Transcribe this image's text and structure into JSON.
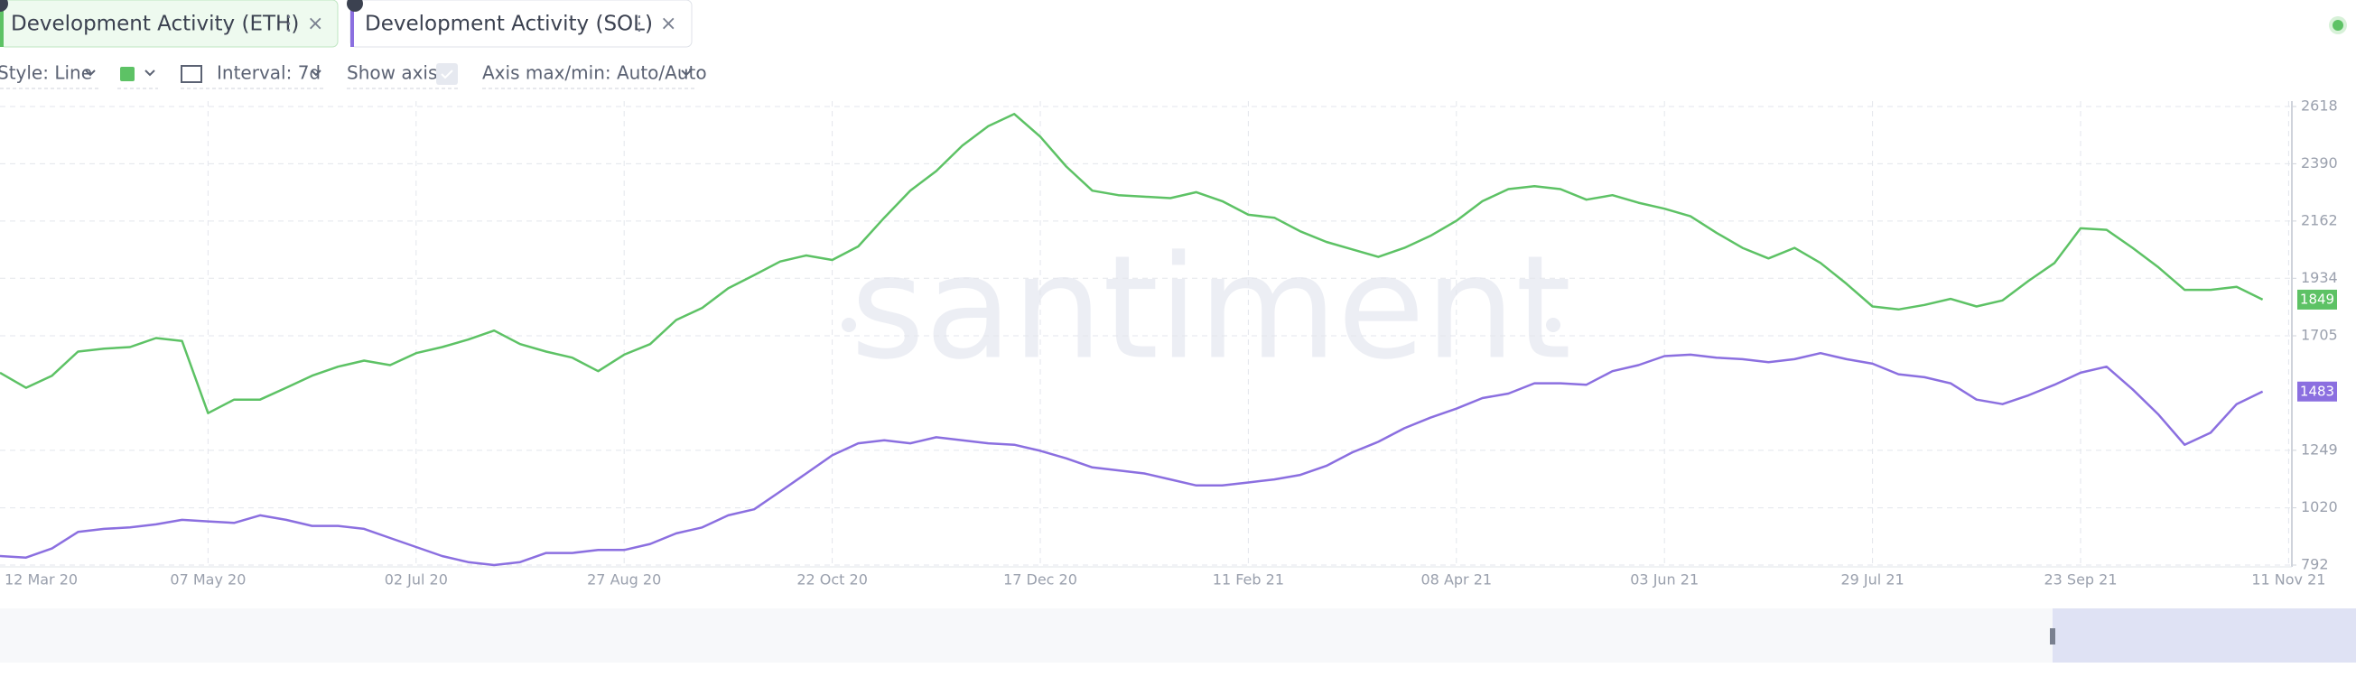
{
  "tabs": [
    "Development Activity (ETH)",
    "Development Activity (SOL)"
  ],
  "toolbar": {
    "style": "Style: Line",
    "interval": "Interval: 7d",
    "show_axis": "Show axis",
    "axis_range": "Axis max/min: Auto/Auto"
  },
  "watermark": "santiment",
  "chart_data": {
    "type": "line",
    "categories": [
      "12 Mar 20",
      null,
      null,
      null,
      null,
      null,
      null,
      null,
      "07 May 20",
      null,
      null,
      null,
      null,
      null,
      null,
      null,
      "02 Jul 20",
      null,
      null,
      null,
      null,
      null,
      null,
      null,
      "27 Aug 20",
      null,
      null,
      null,
      null,
      null,
      null,
      null,
      "22 Oct 20",
      null,
      null,
      null,
      null,
      null,
      null,
      null,
      "17 Dec 20",
      null,
      null,
      null,
      null,
      null,
      null,
      null,
      "11 Feb 21",
      null,
      null,
      null,
      null,
      null,
      null,
      null,
      "08 Apr 21",
      null,
      null,
      null,
      null,
      null,
      null,
      null,
      "03 Jun 21",
      null,
      null,
      null,
      null,
      null,
      null,
      null,
      "29 Jul 21",
      null,
      null,
      null,
      null,
      null,
      null,
      null,
      "23 Sep 21",
      null,
      null,
      null,
      null,
      null,
      null,
      null,
      "11 Nov 21"
    ],
    "series": [
      {
        "name": "Development Activity (ETH)",
        "color": "#5dc265",
        "values": [
          1558,
          1498,
          1546,
          1642,
          1654,
          1660,
          1696,
          1684,
          1397,
          1451,
          1451,
          1498,
          1546,
          1582,
          1606,
          1588,
          1636,
          1660,
          1690,
          1726,
          1672,
          1642,
          1618,
          1564,
          1630,
          1672,
          1768,
          1816,
          1894,
          1947,
          2001,
          2025,
          2007,
          2061,
          2175,
          2283,
          2361,
          2462,
          2540,
          2588,
          2498,
          2379,
          2283,
          2265,
          2259,
          2253,
          2277,
          2241,
          2187,
          2175,
          2121,
          2079,
          2049,
          2019,
          2055,
          2103,
          2163,
          2241,
          2289,
          2301,
          2289,
          2247,
          2265,
          2235,
          2211,
          2181,
          2115,
          2055,
          2013,
          2055,
          1995,
          1912,
          1822,
          1810,
          1828,
          1852,
          1822,
          1846,
          1924,
          1995,
          2133,
          2127,
          2055,
          1977,
          1888,
          1888,
          1900,
          1849,
          null
        ]
      },
      {
        "name": "Development Activity (SOL)",
        "color": "#8b6fe0",
        "values": [
          828,
          822,
          858,
          924,
          936,
          942,
          954,
          972,
          966,
          960,
          990,
          972,
          948,
          948,
          936,
          900,
          864,
          828,
          804,
          792,
          804,
          840,
          840,
          852,
          852,
          876,
          918,
          942,
          990,
          1014,
          1085,
          1157,
          1229,
          1277,
          1289,
          1277,
          1301,
          1289,
          1277,
          1271,
          1247,
          1217,
          1181,
          1169,
          1157,
          1133,
          1109,
          1109,
          1121,
          1133,
          1151,
          1187,
          1241,
          1283,
          1337,
          1379,
          1415,
          1457,
          1475,
          1516,
          1516,
          1510,
          1564,
          1588,
          1624,
          1630,
          1618,
          1612,
          1600,
          1612,
          1636,
          1612,
          1594,
          1552,
          1540,
          1516,
          1451,
          1433,
          1468,
          1510,
          1558,
          1582,
          1492,
          1391,
          1271,
          1319,
          1433,
          1483,
          null
        ]
      }
    ],
    "ylim": [
      792,
      2618
    ],
    "yticks": [
      792,
      1020,
      1249,
      1705,
      1934,
      2162,
      2390,
      2618
    ],
    "grid": true
  }
}
